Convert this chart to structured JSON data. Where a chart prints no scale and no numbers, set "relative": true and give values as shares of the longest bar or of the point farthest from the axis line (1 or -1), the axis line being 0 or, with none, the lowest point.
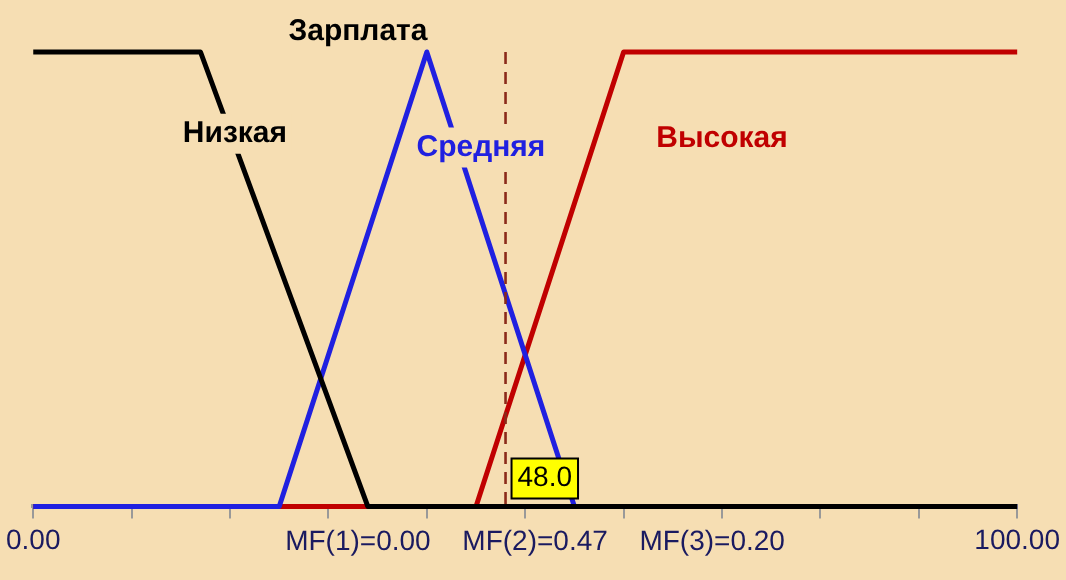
{
  "chart_data": {
    "type": "line",
    "title": "Зарплата",
    "relative": true,
    "series": [
      {
        "name": "Низкая",
        "color": "#000000",
        "x": [
          0,
          17,
          34,
          100
        ],
        "values": [
          1,
          1,
          0,
          0
        ]
      },
      {
        "name": "Средняя",
        "color": "#2020e0",
        "x": [
          0,
          25,
          40,
          55,
          100
        ],
        "values": [
          0,
          0,
          1,
          0,
          0
        ]
      },
      {
        "name": "Высокая",
        "color": "#c00000",
        "x": [
          0,
          45,
          60,
          100
        ],
        "values": [
          0,
          0,
          1,
          1
        ]
      }
    ],
    "xlim": [
      0,
      100
    ],
    "xticks": [
      {
        "value": 0,
        "label": "0.00"
      },
      {
        "value": 10,
        "label": null
      },
      {
        "value": 20,
        "label": null
      },
      {
        "value": 30,
        "label": null
      },
      {
        "value": 40,
        "label": null
      },
      {
        "value": 50,
        "label": null
      },
      {
        "value": 60,
        "label": null
      },
      {
        "value": 70,
        "label": null
      },
      {
        "value": 80,
        "label": null
      },
      {
        "value": 90,
        "label": null
      },
      {
        "value": 100,
        "label": "100.00"
      }
    ],
    "ref_lines": [
      {
        "axis": "x",
        "value": 48,
        "label": "48.0",
        "color": "#8b2a1a",
        "line_style": "dashed"
      }
    ],
    "annotations": [
      "MF(1)=0.00",
      "MF(2)=0.47",
      "MF(3)=0.20"
    ],
    "grid": false,
    "legend": false,
    "marker": "none",
    "line_style": "solid"
  }
}
